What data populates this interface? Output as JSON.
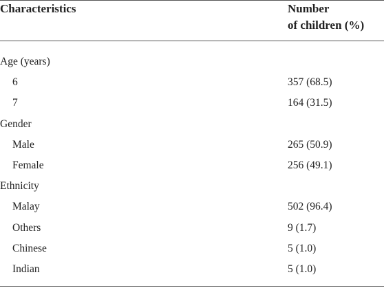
{
  "table": {
    "header": {
      "col1": "Characteristics",
      "col2": [
        "Number",
        "of children (%)"
      ]
    },
    "groups": [
      {
        "label": "Age (years)",
        "rows": [
          [
            "6",
            "357 (68.5)"
          ],
          [
            "7",
            "164 (31.5)"
          ]
        ]
      },
      {
        "label": "Gender",
        "rows": [
          [
            "Male",
            "265 (50.9)"
          ],
          [
            "Female",
            "256 (49.1)"
          ]
        ]
      },
      {
        "label": "Ethnicity",
        "rows": [
          [
            "Malay",
            "502 (96.4)"
          ],
          [
            "Others",
            "9 (1.7)"
          ],
          [
            "Chinese",
            "5 (1.0)"
          ],
          [
            "Indian",
            "5 (1.0)"
          ]
        ]
      }
    ]
  }
}
